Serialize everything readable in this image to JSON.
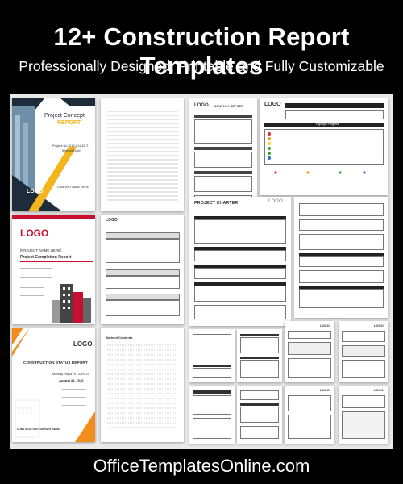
{
  "header": {
    "title": "12+ Construction Report Templates",
    "subtitle": "Professionally Designed, Printable and Fully Customizable"
  },
  "footer": {
    "website": "OfficeTemplatesOnline.com"
  },
  "templates": {
    "project_concept": {
      "title_line1": "Project Concept",
      "title_line2": "REPORT",
      "project_no": "Project No. 015-C1245-T",
      "report_date": "[Report Date]",
      "logo": "LOGO",
      "company": "COMPANY NAME HERE",
      "colors": {
        "accent": "#f2b51c",
        "dark": "#1d2b3a"
      }
    },
    "monthly_report": {
      "logo": "LOGO",
      "title": "MONTHLY REPORT"
    },
    "status_dashboard": {
      "logo": "LOGO",
      "highlight": "Highlight Progress"
    },
    "completion_report": {
      "logo": "LOGO",
      "project_name": "[PROJECT NAME HERE]",
      "title": "Project Completion Report",
      "accent": "#c8102e"
    },
    "project_charter": {
      "title": "PROJECT CHARTER",
      "logo": "LOGO"
    },
    "construction_status": {
      "logo": "LOGO",
      "title": "CONSTRUCTION STATUS REPORT",
      "subtitle": "Monthly Report # CDVS-25",
      "date": "August 31, 2025",
      "company": "CONSTRUCTION COMPANY NAME",
      "accent": "#f28c1c"
    },
    "toc": {
      "label": "Table of Contents"
    },
    "generic_logo": "LOGO"
  }
}
